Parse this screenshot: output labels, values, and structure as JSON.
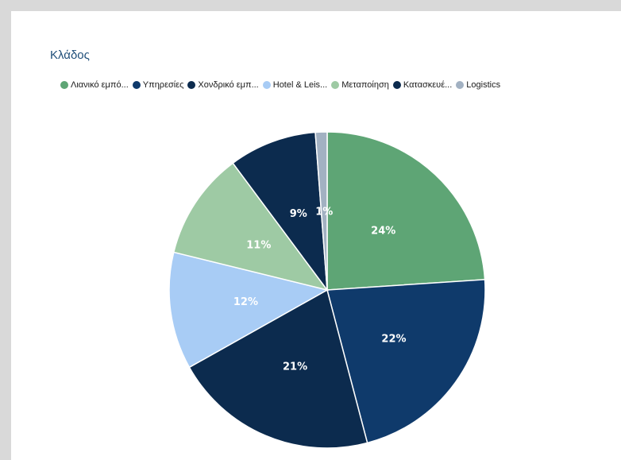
{
  "chart_data": {
    "type": "pie",
    "title": "Κλάδος",
    "legend_position": "top",
    "slices": [
      {
        "label": "Λιανικό εμπό...",
        "value": 24,
        "display": "24%",
        "color": "#5ea575"
      },
      {
        "label": "Υπηρεσίες",
        "value": 22,
        "display": "22%",
        "color": "#0f3a6b"
      },
      {
        "label": "Χονδρικό εμπ...",
        "value": 21,
        "display": "21%",
        "color": "#0c2b4e"
      },
      {
        "label": "Hotel & Leis...",
        "value": 12,
        "display": "12%",
        "color": "#a8ccf5"
      },
      {
        "label": "Μεταποίηση",
        "value": 11,
        "display": "11%",
        "color": "#9ecaa4"
      },
      {
        "label": "Κατασκευέ...",
        "value": 9,
        "display": "9%",
        "color": "#0c2b4e"
      },
      {
        "label": "Logistics",
        "value": 1.2,
        "display": "1%",
        "color": "#a2b1c2"
      }
    ]
  }
}
